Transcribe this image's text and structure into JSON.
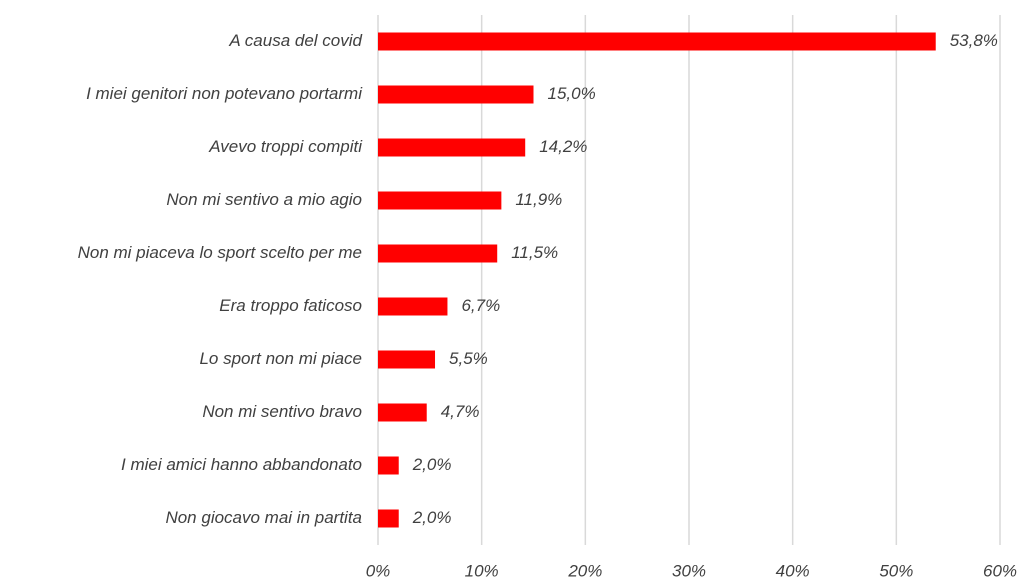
{
  "chart_data": {
    "type": "bar",
    "orientation": "horizontal",
    "categories": [
      "A causa del covid",
      "I miei genitori non potevano portarmi",
      "Avevo troppi compiti",
      "Non mi sentivo a mio agio",
      "Non mi piaceva lo sport scelto per me",
      "Era troppo faticoso",
      "Lo sport non mi piace",
      "Non mi sentivo bravo",
      "I miei amici hanno abbandonato",
      "Non giocavo mai in partita"
    ],
    "values": [
      53.8,
      15.0,
      14.2,
      11.9,
      11.5,
      6.7,
      5.5,
      4.7,
      2.0,
      2.0
    ],
    "value_labels": [
      "53,8%",
      "15,0%",
      "14,2%",
      "11,9%",
      "11,5%",
      "6,7%",
      "5,5%",
      "4,7%",
      "2,0%",
      "2,0%"
    ],
    "color": "#ff0000",
    "xlim": [
      0,
      60
    ],
    "xticks": [
      {
        "value": 0,
        "label": "0%"
      },
      {
        "value": 10,
        "label": "10%"
      },
      {
        "value": 20,
        "label": "20%"
      },
      {
        "value": 30,
        "label": "30%"
      },
      {
        "value": 40,
        "label": "40%"
      },
      {
        "value": 50,
        "label": "50%"
      },
      {
        "value": 60,
        "label": "60%"
      }
    ],
    "grid": true
  }
}
